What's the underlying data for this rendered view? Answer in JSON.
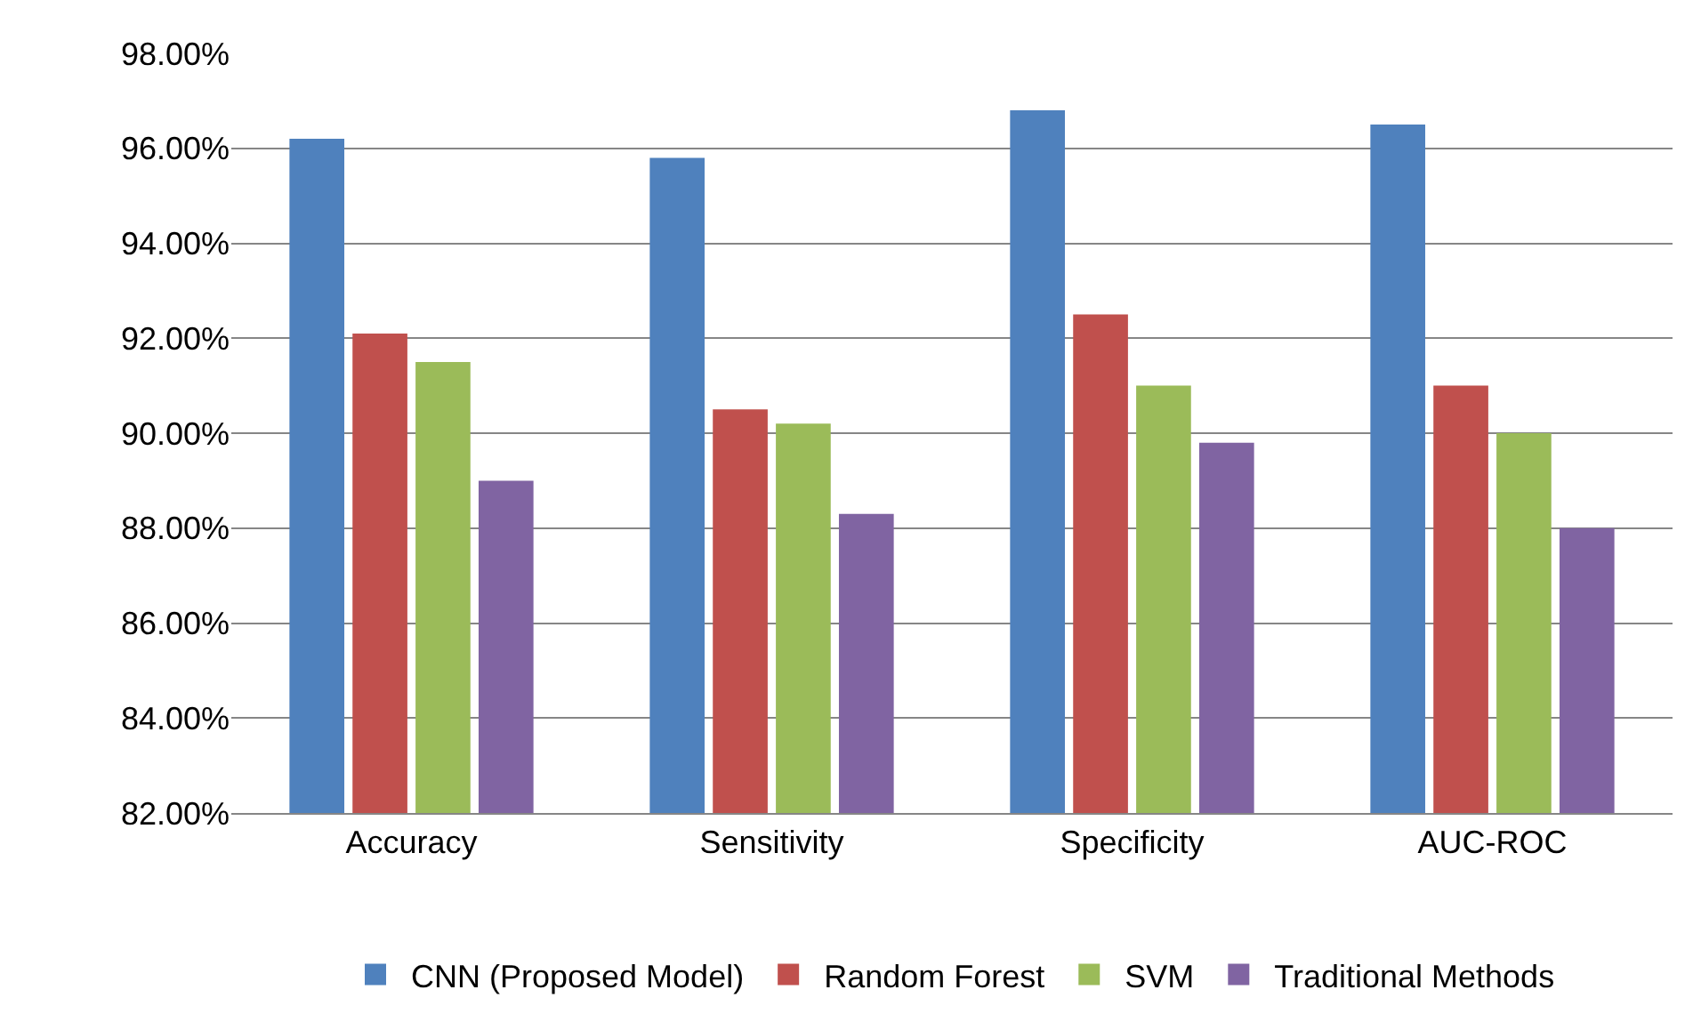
{
  "chart_data": {
    "type": "bar",
    "categories": [
      "Accuracy",
      "Sensitivity",
      "Specificity",
      "AUC-ROC"
    ],
    "series": [
      {
        "name": "CNN (Proposed Model)",
        "color": "#4f81bd",
        "values": [
          96.2,
          95.8,
          96.8,
          96.5
        ]
      },
      {
        "name": "Random Forest",
        "color": "#c0504d",
        "values": [
          92.1,
          90.5,
          92.5,
          91.0
        ]
      },
      {
        "name": "SVM",
        "color": "#9bbb59",
        "values": [
          91.5,
          90.2,
          91.0,
          90.0
        ]
      },
      {
        "name": "Traditional Methods",
        "color": "#8064a2",
        "values": [
          89.0,
          88.3,
          89.8,
          88.0
        ]
      }
    ],
    "ylim": [
      82,
      98
    ],
    "yticks": [
      {
        "value": 82,
        "label": "82.00%"
      },
      {
        "value": 84,
        "label": "84.00%"
      },
      {
        "value": 86,
        "label": "86.00%"
      },
      {
        "value": 88,
        "label": "88.00%"
      },
      {
        "value": 90,
        "label": "90.00%"
      },
      {
        "value": 92,
        "label": "92.00%"
      },
      {
        "value": 94,
        "label": "94.00%"
      },
      {
        "value": 96,
        "label": "96.00%"
      },
      {
        "value": 98,
        "label": "98.00%"
      }
    ],
    "grid": "y",
    "legend": "bottom"
  }
}
